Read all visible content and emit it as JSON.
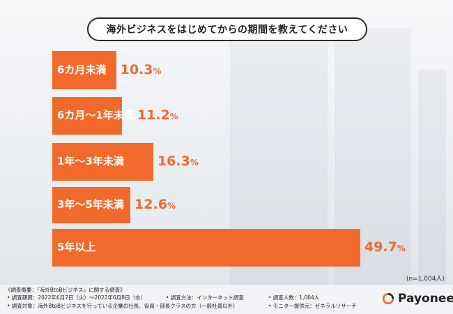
{
  "title": "海外ビジネスをはじめてからの期間を教えてください",
  "sample_note": "(n=1,004人)",
  "footer": {
    "heading": "《調査概要：「海外BtoBビジネス」に関する調査》",
    "period": "• 調査期間：2022年6月7日（火）〜2022年6月8日（水）",
    "method": "• 調査方法：インターネット調査",
    "count": "• 調査人数：1,004人",
    "target": "• 調査対象：海外BtoBビジネスを行っている企業の社長、役員・部長クラスの方（一般社員以外）",
    "provider": "• モニター提供元：ゼネラルリサーチ"
  },
  "brand": {
    "name": "Payoneer"
  },
  "colors": {
    "bar": "#f26a2b",
    "title_border": "#2b2b2b"
  },
  "chart_data": {
    "type": "bar",
    "orientation": "horizontal",
    "categories": [
      "6カ月未満",
      "6カ月〜1年未満",
      "1年〜3年未満",
      "3年〜5年未満",
      "5年以上"
    ],
    "values": [
      10.3,
      11.2,
      16.3,
      12.6,
      49.7
    ],
    "unit": "%",
    "title": "海外ビジネスをはじめてからの期間を教えてください",
    "grid": false,
    "legend": "none"
  }
}
